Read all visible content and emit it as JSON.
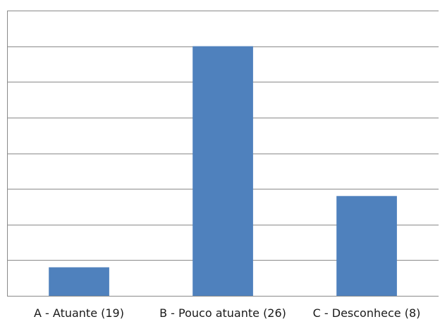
{
  "chart_data": {
    "type": "bar",
    "categories": [
      "A - Atuante (19)",
      "B - Pouco atuante (26)",
      "C - Desconhece (8)"
    ],
    "values": [
      4,
      35,
      14
    ],
    "ylim": [
      0,
      40
    ],
    "ytick_step": 5,
    "title": "",
    "xlabel": "",
    "ylabel": "",
    "grid": true,
    "legend": "none",
    "bar_color": "#4f81bd",
    "gridline_color": "#8a8a8a"
  }
}
